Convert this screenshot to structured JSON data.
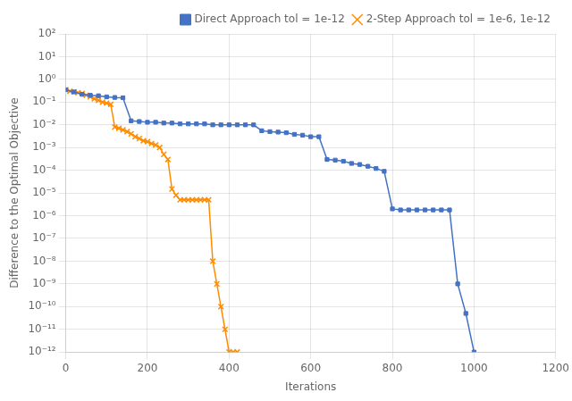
{
  "chart_data": {
    "type": "line",
    "xlabel": "Iterations",
    "ylabel": "Difference to the Optimal Objective",
    "log": "y",
    "grid": true,
    "legend": "upper right",
    "xlim": [
      0,
      1200
    ],
    "xticks": [
      0,
      200,
      400,
      600,
      800,
      1000,
      1200
    ],
    "ylim": [
      1e-12,
      100
    ],
    "yticks": [
      {
        "value": 1e-12,
        "label": "10⁻¹²"
      },
      {
        "value": 1e-11,
        "label": "10⁻¹¹"
      },
      {
        "value": 1e-10,
        "label": "10⁻¹⁰"
      },
      {
        "value": 1e-09,
        "label": "10⁻⁹"
      },
      {
        "value": 1e-08,
        "label": "10⁻⁸"
      },
      {
        "value": 1e-07,
        "label": "10⁻⁷"
      },
      {
        "value": 1e-06,
        "label": "10⁻⁶"
      },
      {
        "value": 1e-05,
        "label": "10⁻⁵"
      },
      {
        "value": 0.0001,
        "label": "10⁻⁴"
      },
      {
        "value": 0.001,
        "label": "10⁻³"
      },
      {
        "value": 0.01,
        "label": "10⁻²"
      },
      {
        "value": 0.1,
        "label": "10⁻¹"
      },
      {
        "value": 1,
        "label": "10⁰"
      },
      {
        "value": 10,
        "label": "10¹"
      },
      {
        "value": 100,
        "label": "10²"
      }
    ],
    "series": [
      {
        "name": "Direct Approach tol = 1e-12",
        "color": "#4472C4",
        "marker": "square",
        "x": [
          0,
          20,
          40,
          60,
          80,
          100,
          120,
          140,
          160,
          180,
          200,
          220,
          240,
          260,
          280,
          300,
          320,
          340,
          360,
          380,
          400,
          420,
          440,
          460,
          480,
          500,
          520,
          540,
          560,
          580,
          600,
          620,
          640,
          660,
          680,
          700,
          720,
          740,
          760,
          780,
          800,
          820,
          840,
          860,
          880,
          900,
          920,
          940,
          960,
          980,
          1000
        ],
        "values": [
          0.35,
          0.28,
          0.22,
          0.2,
          0.19,
          0.17,
          0.16,
          0.155,
          0.015,
          0.014,
          0.013,
          0.013,
          0.012,
          0.012,
          0.011,
          0.011,
          0.011,
          0.011,
          0.01,
          0.01,
          0.01,
          0.01,
          0.01,
          0.01,
          0.0055,
          0.005,
          0.0048,
          0.0045,
          0.0038,
          0.0035,
          0.003,
          0.003,
          0.0003,
          0.00028,
          0.00025,
          0.0002,
          0.00018,
          0.00015,
          0.00012,
          9e-05,
          2e-06,
          1.8e-06,
          1.8e-06,
          1.8e-06,
          1.8e-06,
          1.8e-06,
          1.8e-06,
          1.8e-06,
          1e-09,
          5e-11,
          1e-12
        ]
      },
      {
        "name": "2-Step Approach tol = 1e-6, 1e-12",
        "color": "#FF8C00",
        "marker": "x",
        "x": [
          0,
          10,
          20,
          30,
          40,
          50,
          60,
          70,
          80,
          90,
          100,
          110,
          120,
          130,
          140,
          150,
          160,
          170,
          180,
          190,
          200,
          210,
          220,
          230,
          240,
          250,
          260,
          270,
          280,
          290,
          300,
          310,
          320,
          330,
          340,
          350,
          360,
          370,
          380,
          390,
          400,
          410,
          420
        ],
        "values": [
          0.35,
          0.3,
          0.28,
          0.26,
          0.24,
          0.2,
          0.17,
          0.14,
          0.12,
          0.1,
          0.09,
          0.08,
          0.008,
          0.007,
          0.006,
          0.005,
          0.004,
          0.003,
          0.0025,
          0.002,
          0.0018,
          0.0015,
          0.0013,
          0.001,
          0.0005,
          0.0003,
          1.5e-05,
          8e-06,
          5e-06,
          5e-06,
          5e-06,
          5e-06,
          5e-06,
          5e-06,
          5e-06,
          5e-06,
          1e-08,
          1e-09,
          1e-10,
          1e-11,
          1e-12,
          1e-12,
          1e-12
        ]
      }
    ]
  }
}
